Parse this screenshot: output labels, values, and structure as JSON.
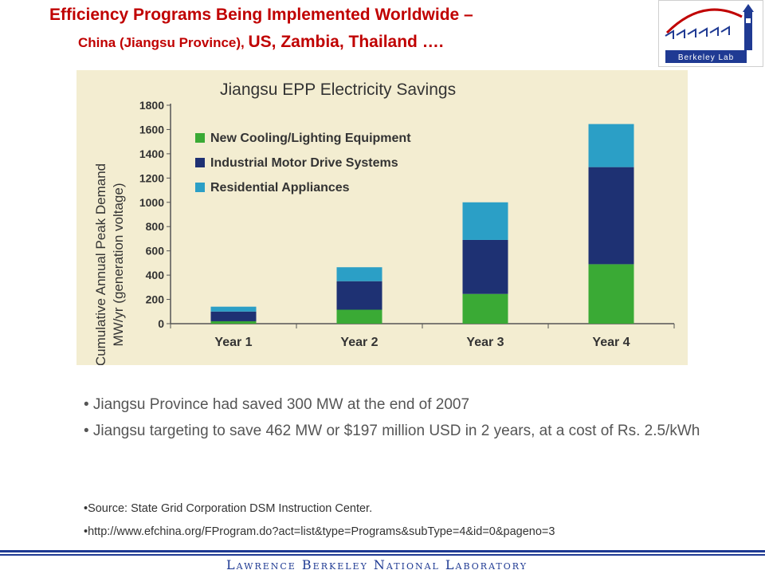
{
  "header": {
    "title_line1": "Efficiency Programs Being Implemented Worldwide –",
    "title_line2_part1": "China (Jiangsu Province), ",
    "title_line2_part2": "US, Zambia, Thailand …."
  },
  "logo": {
    "text": "Berkeley Lab",
    "color": "#c00000"
  },
  "chart_data": {
    "type": "bar",
    "stacked": true,
    "title": "Jiangsu EPP Electricity Savings",
    "ylabel": "Cumulative Annual Peak Demand MW/yr (generation voltage)",
    "ylabel_line1": "Cumulative Annual Peak Demand",
    "ylabel_line2": "MW/yr (generation voltage)",
    "xlabel": "",
    "categories": [
      "Year 1",
      "Year 2",
      "Year 3",
      "Year 4"
    ],
    "ylim": [
      0,
      1800
    ],
    "yticks": [
      0,
      200,
      400,
      600,
      800,
      1000,
      1200,
      1400,
      1600,
      1800
    ],
    "legend_position": "top-left",
    "series": [
      {
        "name": "New Cooling/Lighting Equipment",
        "color": "#3aaa35",
        "values": [
          20,
          115,
          245,
          490
        ]
      },
      {
        "name": "Industrial Motor Drive Systems",
        "color": "#1e3173",
        "values": [
          80,
          235,
          445,
          800
        ]
      },
      {
        "name": "Residential Appliances",
        "color": "#2b9fc6",
        "values": [
          40,
          115,
          310,
          355
        ]
      }
    ]
  },
  "bullets": [
    "• Jiangsu Province had saved 300 MW at the end of 2007",
    "• Jiangsu targeting to save 462 MW or $197 million USD in 2 years, at a cost of Rs. 2.5/kWh"
  ],
  "sources": [
    "•Source: State Grid Corporation DSM Instruction Center.",
    "•http://www.efchina.org/FProgram.do?act=list&type=Programs&subType=4&id=0&pageno=3"
  ],
  "footer": {
    "text": "Lawrence Berkeley National Laboratory"
  }
}
